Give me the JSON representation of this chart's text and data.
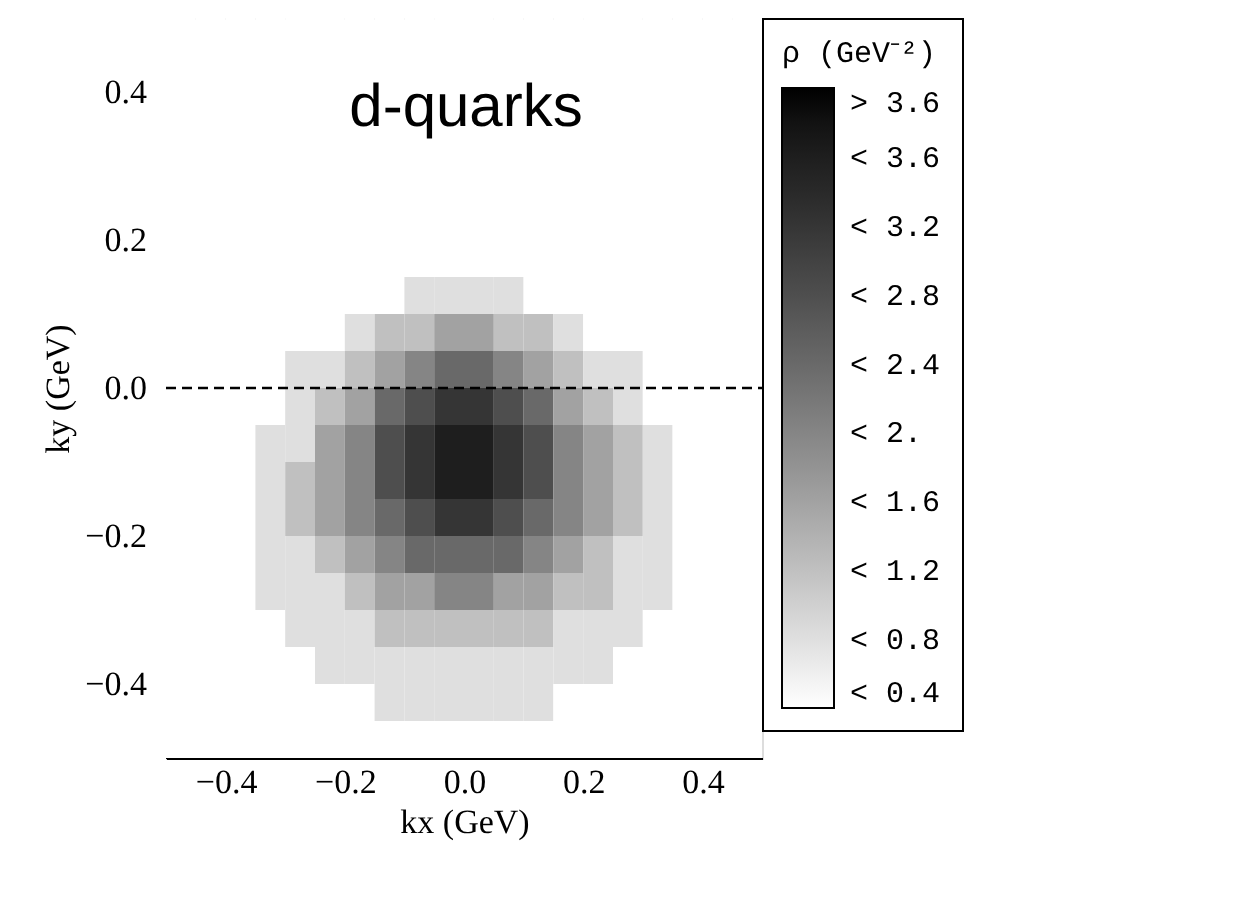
{
  "chart_data": {
    "type": "heatmap",
    "xlabel": "kx (GeV)",
    "ylabel": "ky (GeV)",
    "clabel": "ρ (GeV⁻²)",
    "annotations": [
      "d-quarks"
    ],
    "xlim": [
      -0.5,
      0.5
    ],
    "ylim": [
      -0.5,
      0.5
    ],
    "xticks": [
      {
        "value": -0.4,
        "label": "−0.4"
      },
      {
        "value": -0.2,
        "label": "−0.2"
      },
      {
        "value": 0,
        "label": "0.0"
      },
      {
        "value": 0.2,
        "label": "0.2"
      },
      {
        "value": 0.4,
        "label": "0.4"
      }
    ],
    "yticks": [
      {
        "value": -0.4,
        "label": "−0.4"
      },
      {
        "value": -0.2,
        "label": "−0.2"
      },
      {
        "value": 0,
        "label": "0.0"
      },
      {
        "value": 0.2,
        "label": "0.2"
      },
      {
        "value": 0.4,
        "label": "0.4"
      }
    ],
    "x": [
      -0.475,
      -0.425,
      -0.375,
      -0.325,
      -0.275,
      -0.225,
      -0.175,
      -0.125,
      -0.075,
      -0.025,
      0.025,
      0.075,
      0.125,
      0.175,
      0.225,
      0.275,
      0.325,
      0.375,
      0.425,
      0.475
    ],
    "y": [
      0.475,
      0.425,
      0.375,
      0.325,
      0.275,
      0.225,
      0.175,
      0.125,
      0.075,
      0.025,
      -0.025,
      -0.075,
      -0.125,
      -0.175,
      -0.225,
      -0.275,
      -0.325,
      -0.375,
      -0.425,
      -0.475
    ],
    "clim": [
      0.4,
      4.0
    ],
    "colors": [
      "#ffffff",
      "#000000"
    ],
    "cticks": [
      {
        "value": 4.0,
        "label": "> 3.6"
      },
      {
        "value": 3.6,
        "label": "< 3.6"
      },
      {
        "value": 3.2,
        "label": "< 3.2"
      },
      {
        "value": 2.8,
        "label": "< 2.8"
      },
      {
        "value": 2.4,
        "label": "< 2.4"
      },
      {
        "value": 2.0,
        "label": "< 2."
      },
      {
        "value": 1.6,
        "label": "< 1.6"
      },
      {
        "value": 1.2,
        "label": "< 1.2"
      },
      {
        "value": 0.8,
        "label": "< 0.8"
      },
      {
        "value": 0.4,
        "label": "< 0.4"
      }
    ],
    "ref_lines": [
      {
        "axis": "y",
        "value": 0,
        "line_style": "dashed",
        "color": "#000000"
      }
    ],
    "grid": false,
    "cells": [
      [
        0.4,
        0.4,
        0.4,
        0.4,
        0.4,
        0.4,
        0.4,
        0.4,
        0.4,
        0.4,
        0.4,
        0.4,
        0.4,
        0.4,
        0.4,
        0.4,
        0.4,
        0.4,
        0.4,
        0.4
      ],
      [
        0.4,
        0.4,
        0.4,
        0.4,
        0.4,
        0.4,
        0.4,
        0.4,
        0.4,
        0.4,
        0.4,
        0.4,
        0.4,
        0.4,
        0.4,
        0.4,
        0.4,
        0.4,
        0.4,
        0.4
      ],
      [
        0.4,
        0.4,
        0.4,
        0.4,
        0.4,
        0.4,
        0.4,
        0.4,
        0.4,
        0.4,
        0.4,
        0.4,
        0.4,
        0.4,
        0.4,
        0.4,
        0.4,
        0.4,
        0.4,
        0.4
      ],
      [
        0.4,
        0.4,
        0.4,
        0.4,
        0.4,
        0.4,
        0.4,
        0.4,
        0.4,
        0.4,
        0.4,
        0.4,
        0.4,
        0.4,
        0.4,
        0.4,
        0.4,
        0.4,
        0.4,
        0.4
      ],
      [
        0.4,
        0.4,
        0.4,
        0.4,
        0.4,
        0.4,
        0.4,
        0.4,
        0.4,
        0.4,
        0.4,
        0.4,
        0.4,
        0.4,
        0.4,
        0.4,
        0.4,
        0.4,
        0.4,
        0.4
      ],
      [
        0.4,
        0.4,
        0.4,
        0.4,
        0.4,
        0.4,
        0.4,
        0.4,
        0.4,
        0.4,
        0.4,
        0.4,
        0.4,
        0.4,
        0.4,
        0.4,
        0.4,
        0.4,
        0.4,
        0.4
      ],
      [
        0.4,
        0.4,
        0.4,
        0.4,
        0.4,
        0.4,
        0.4,
        0.4,
        0.4,
        0.4,
        0.4,
        0.4,
        0.4,
        0.4,
        0.4,
        0.4,
        0.4,
        0.4,
        0.4,
        0.4
      ],
      [
        0.4,
        0.4,
        0.4,
        0.4,
        0.4,
        0.4,
        0.4,
        0.4,
        0.8,
        0.8,
        0.8,
        0.8,
        0.4,
        0.4,
        0.4,
        0.4,
        0.4,
        0.4,
        0.4,
        0.4
      ],
      [
        0.4,
        0.4,
        0.4,
        0.4,
        0.4,
        0.4,
        0.8,
        1.2,
        1.2,
        1.6,
        1.6,
        1.2,
        1.2,
        0.8,
        0.4,
        0.4,
        0.4,
        0.4,
        0.4,
        0.4
      ],
      [
        0.4,
        0.4,
        0.4,
        0.4,
        0.8,
        0.8,
        1.2,
        1.6,
        2.0,
        2.4,
        2.4,
        2.0,
        1.6,
        1.2,
        0.8,
        0.8,
        0.4,
        0.4,
        0.4,
        0.4
      ],
      [
        0.4,
        0.4,
        0.4,
        0.4,
        0.8,
        1.2,
        1.6,
        2.4,
        2.8,
        3.2,
        3.2,
        2.8,
        2.4,
        1.6,
        1.2,
        0.8,
        0.4,
        0.4,
        0.4,
        0.4
      ],
      [
        0.4,
        0.4,
        0.4,
        0.8,
        0.8,
        1.6,
        2.0,
        2.8,
        3.2,
        3.6,
        3.6,
        3.2,
        2.8,
        2.0,
        1.6,
        1.2,
        0.8,
        0.4,
        0.4,
        0.4
      ],
      [
        0.4,
        0.4,
        0.4,
        0.8,
        1.2,
        1.6,
        2.0,
        2.8,
        3.2,
        3.6,
        3.6,
        3.2,
        2.8,
        2.0,
        1.6,
        1.2,
        0.8,
        0.4,
        0.4,
        0.4
      ],
      [
        0.4,
        0.4,
        0.4,
        0.8,
        1.2,
        1.6,
        2.0,
        2.4,
        2.8,
        3.2,
        3.2,
        2.8,
        2.4,
        2.0,
        1.6,
        1.2,
        0.8,
        0.4,
        0.4,
        0.4
      ],
      [
        0.4,
        0.4,
        0.4,
        0.8,
        0.8,
        1.2,
        1.6,
        2.0,
        2.4,
        2.4,
        2.4,
        2.4,
        2.0,
        1.6,
        1.2,
        0.8,
        0.8,
        0.4,
        0.4,
        0.4
      ],
      [
        0.4,
        0.4,
        0.4,
        0.8,
        0.8,
        0.8,
        1.2,
        1.6,
        1.6,
        2.0,
        2.0,
        1.6,
        1.6,
        1.2,
        1.2,
        0.8,
        0.8,
        0.4,
        0.4,
        0.4
      ],
      [
        0.4,
        0.4,
        0.4,
        0.4,
        0.8,
        0.8,
        0.8,
        1.2,
        1.2,
        1.2,
        1.2,
        1.2,
        1.2,
        0.8,
        0.8,
        0.8,
        0.4,
        0.4,
        0.4,
        0.4
      ],
      [
        0.4,
        0.4,
        0.4,
        0.4,
        0.4,
        0.8,
        0.8,
        0.8,
        0.8,
        0.8,
        0.8,
        0.8,
        0.8,
        0.8,
        0.8,
        0.4,
        0.4,
        0.4,
        0.4,
        0.4
      ],
      [
        0.4,
        0.4,
        0.4,
        0.4,
        0.4,
        0.4,
        0.4,
        0.8,
        0.8,
        0.8,
        0.8,
        0.8,
        0.8,
        0.4,
        0.4,
        0.4,
        0.4,
        0.4,
        0.4,
        0.4
      ],
      [
        0.4,
        0.4,
        0.4,
        0.4,
        0.4,
        0.4,
        0.4,
        0.4,
        0.4,
        0.4,
        0.4,
        0.4,
        0.4,
        0.4,
        0.4,
        0.4,
        0.4,
        0.4,
        0.4,
        0.4
      ]
    ]
  }
}
